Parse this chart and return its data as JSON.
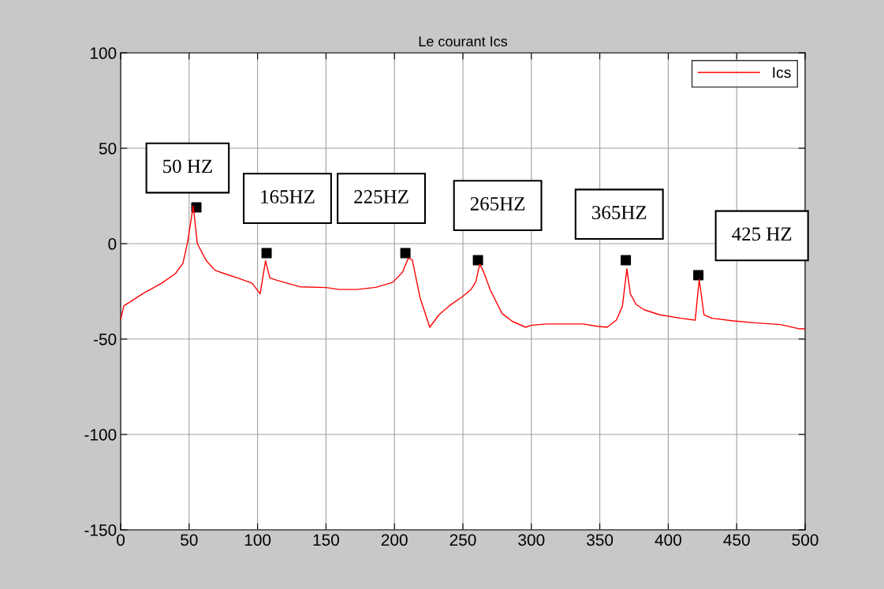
{
  "chart_data": {
    "type": "line",
    "title": "Le courant Ics",
    "xlim": [
      0,
      500
    ],
    "ylim": [
      -150,
      100
    ],
    "xticks": [
      0,
      50,
      100,
      150,
      200,
      250,
      300,
      350,
      400,
      450,
      500
    ],
    "yticks": [
      -150,
      -100,
      -50,
      0,
      50,
      100
    ],
    "grid": true,
    "legend": "top right",
    "series": [
      {
        "name": "Ics",
        "color": "#ff0000",
        "marker": "none",
        "x": [
          0,
          2.3,
          8,
          16.7,
          30,
          40,
          45.5,
          49,
          53,
          56,
          62.6,
          69,
          77,
          85.6,
          96,
          101.9,
          105.8,
          109,
          115,
          130.8,
          150,
          159.6,
          165,
          172.8,
          186.5,
          198.7,
          206,
          210,
          213,
          218.7,
          225.8,
          232.5,
          240.2,
          249.8,
          255.6,
          259.4,
          262.3,
          265,
          270,
          278.6,
          286.3,
          295.9,
          299.7,
          311,
          338,
          347.8,
          355.4,
          362.1,
          366.5,
          369.8,
          372.3,
          376.5,
          382.3,
          393.8,
          409.2,
          419.7,
          422.6,
          426.1,
          432.2,
          447.6,
          464.9,
          482.1,
          495.4,
          500
        ],
        "values": [
          -39.7,
          -32.6,
          -30,
          -26,
          -20.7,
          -15.7,
          -10.3,
          1.2,
          19.8,
          0,
          -9,
          -14,
          -16,
          -18,
          -20.7,
          -26.3,
          -9,
          -18,
          -19.4,
          -22.6,
          -23,
          -24,
          -24,
          -24,
          -22.9,
          -20.3,
          -14.9,
          -7.7,
          -8.4,
          -28.4,
          -43.8,
          -37.3,
          -32.5,
          -27.7,
          -24.3,
          -20.1,
          -10.7,
          -14.6,
          -24.3,
          -36.6,
          -40.8,
          -43.8,
          -42.8,
          -42.1,
          -42.1,
          -43.3,
          -43.8,
          -40.1,
          -32.8,
          -13.2,
          -26.3,
          -31.8,
          -34.6,
          -37.3,
          -39.1,
          -40.1,
          -18.7,
          -37.3,
          -39.1,
          -40.5,
          -41.6,
          -42.4,
          -44.6,
          -44.6
        ]
      },
      {
        "type": "scatter",
        "color": "#000000",
        "marker": "square",
        "x": [
          55.3,
          106.6,
          208,
          261,
          369,
          422
        ],
        "values": [
          19,
          -5,
          -5,
          -8.7,
          -8.7,
          -16.5
        ]
      }
    ],
    "annotations": [
      {
        "text": "50 HZ",
        "x": 55.3,
        "y": 19
      },
      {
        "text": "165HZ",
        "x": 106.6,
        "y": -5
      },
      {
        "text": "225HZ",
        "x": 208,
        "y": -5
      },
      {
        "text": "265HZ",
        "x": 261,
        "y": -8.7
      },
      {
        "text": "365HZ",
        "x": 369,
        "y": -8.7
      },
      {
        "text": "425 HZ",
        "x": 422,
        "y": -16.5
      }
    ]
  }
}
